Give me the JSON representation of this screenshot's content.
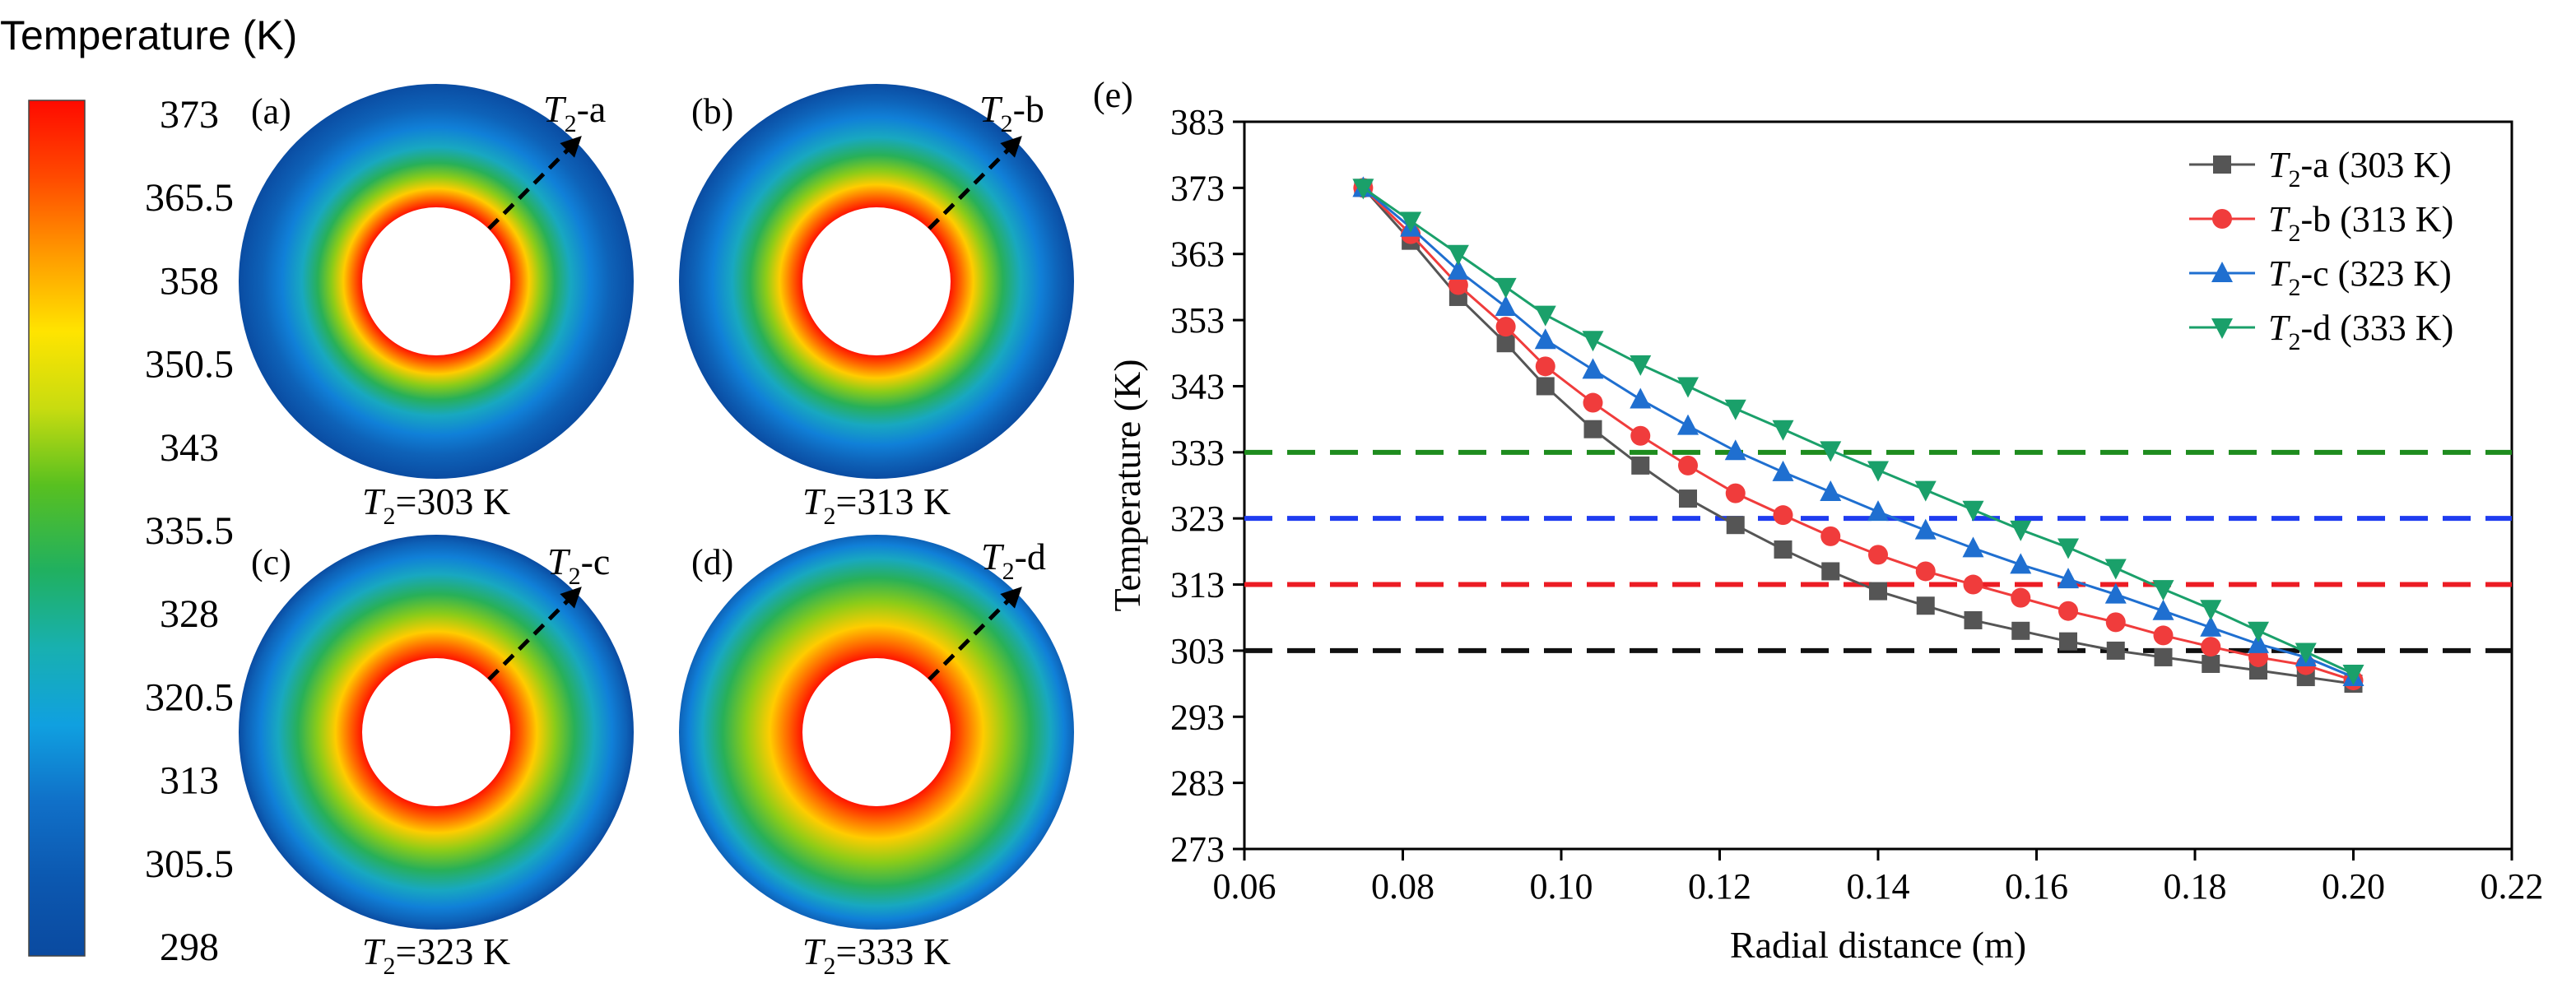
{
  "colorbar": {
    "title": "Temperature (K)",
    "ticks": [
      "373",
      "365.5",
      "358",
      "350.5",
      "343",
      "335.5",
      "328",
      "320.5",
      "313",
      "305.5",
      "298"
    ],
    "min": 298,
    "max": 373
  },
  "panels": [
    {
      "tag": "(a)",
      "arrow_label": "-a",
      "caption_value": "=303 K",
      "t2": 303
    },
    {
      "tag": "(b)",
      "arrow_label": "-b",
      "caption_value": "=313 K",
      "t2": 313
    },
    {
      "tag": "(c)",
      "arrow_label": "-c",
      "caption_value": "=323 K",
      "t2": 323
    },
    {
      "tag": "(d)",
      "arrow_label": "-d",
      "caption_value": "=333 K",
      "t2": 333
    }
  ],
  "symbol": {
    "var": "T",
    "sub": "2"
  },
  "chart_data": {
    "type": "line",
    "panel_tag": "(e)",
    "xlabel": "Radial distance (m)",
    "ylabel": "Temperature (K)",
    "xlim": [
      0.06,
      0.22
    ],
    "ylim": [
      273,
      383
    ],
    "xticks": [
      "0.06",
      "0.08",
      "0.10",
      "0.12",
      "0.14",
      "0.16",
      "0.18",
      "0.20",
      "0.22"
    ],
    "yticks": [
      "273",
      "283",
      "293",
      "303",
      "313",
      "323",
      "333",
      "343",
      "353",
      "363",
      "373",
      "383"
    ],
    "x": [
      0.075,
      0.081,
      0.087,
      0.093,
      0.098,
      0.104,
      0.11,
      0.116,
      0.122,
      0.128,
      0.134,
      0.14,
      0.146,
      0.152,
      0.158,
      0.164,
      0.17,
      0.176,
      0.182,
      0.188,
      0.194,
      0.2
    ],
    "series": [
      {
        "name": "-a (303 K)",
        "color": "#555555",
        "marker": "square",
        "values": [
          373,
          365,
          356.5,
          349.5,
          343,
          336.5,
          331,
          326,
          322,
          318.3,
          315,
          312,
          309.8,
          307.6,
          306,
          304.4,
          303,
          302,
          301,
          300,
          299,
          298
        ]
      },
      {
        "name": "-b (313 K)",
        "color": "#f03c3c",
        "marker": "circle",
        "values": [
          373,
          366,
          358.3,
          352,
          346,
          340.5,
          335.5,
          331,
          326.8,
          323.5,
          320.3,
          317.5,
          315,
          313,
          311,
          309,
          307.3,
          305.3,
          303.6,
          302,
          300.8,
          298.5
        ]
      },
      {
        "name": "-c (323 K)",
        "color": "#1f6fd0",
        "marker": "triangle-up",
        "values": [
          373,
          367,
          360.5,
          355,
          350,
          345.5,
          341,
          337,
          333.2,
          330,
          327,
          324,
          321.2,
          318.5,
          316,
          313.8,
          311.5,
          309,
          306.5,
          304,
          302,
          299
        ]
      },
      {
        "name": "-d (333 K)",
        "color": "#1aa06a",
        "marker": "triangle-down",
        "values": [
          373,
          368,
          363,
          358,
          353.8,
          350,
          346.3,
          343,
          339.6,
          336.5,
          333.3,
          330.3,
          327.3,
          324.3,
          321.3,
          318.6,
          315.5,
          312.3,
          309.3,
          306,
          302.8,
          299.5
        ]
      }
    ],
    "reference_lines": [
      {
        "y": 333,
        "color": "#1e8c1e"
      },
      {
        "y": 323,
        "color": "#1f3cf0"
      },
      {
        "y": 313,
        "color": "#ec1c24"
      },
      {
        "y": 303,
        "color": "#111111"
      }
    ],
    "legend_position": "top-right",
    "grid": false
  }
}
